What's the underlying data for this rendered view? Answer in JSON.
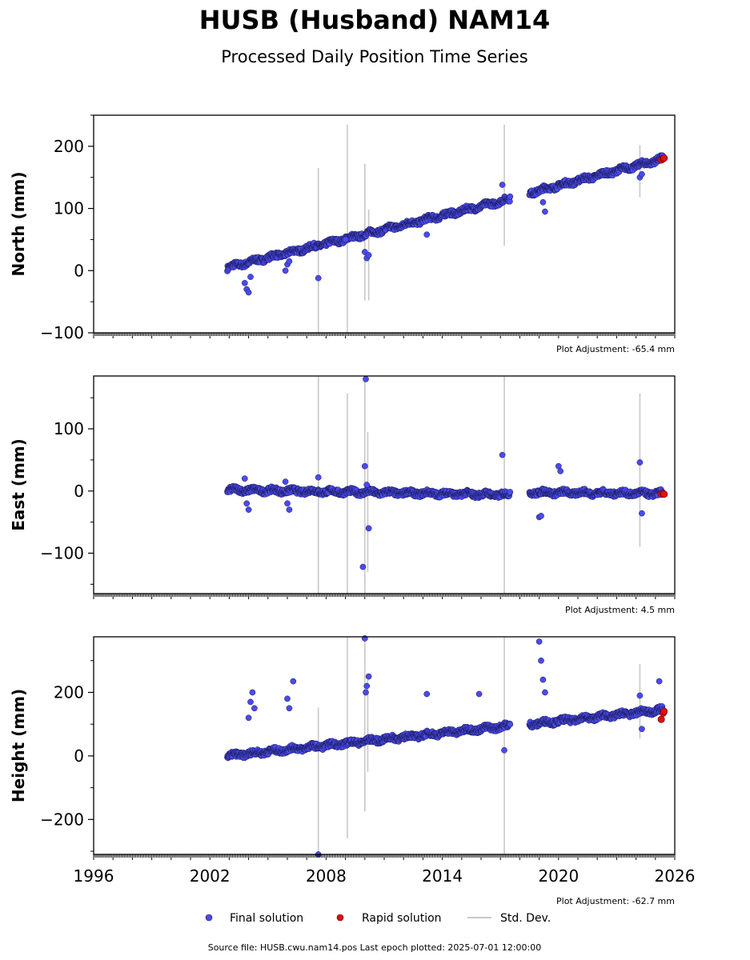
{
  "header": {
    "title": "HUSB (Husband) NAM14",
    "subtitle": "Processed Daily Position Time Series"
  },
  "footer": {
    "source": "Source file: HUSB.cwu.nam14.pos  Last epoch plotted: 2025-07-01 12:00:00"
  },
  "legend": {
    "final": "Final solution",
    "rapid": "Rapid solution",
    "std": "Std. Dev."
  },
  "colors": {
    "final": "#4a4af0",
    "final_edge": "#1a1a50",
    "rapid": "#e01010",
    "std": "#c8c8c8"
  },
  "chart_data": [
    {
      "type": "scatter",
      "ylabel": "North (mm)",
      "adjustment": "Plot Adjustment: -65.4 mm",
      "xlim": [
        1996,
        2026
      ],
      "ylim": [
        -100,
        250
      ],
      "yticks": [
        -100,
        0,
        100,
        200
      ],
      "xticks": [],
      "segments": [
        {
          "x": [
            2002.9,
            2017.5
          ],
          "y": [
            5,
            115
          ]
        },
        {
          "x": [
            2018.5,
            2025.4
          ],
          "y": [
            125,
            180
          ]
        }
      ],
      "outliers_x": [
        2003.8,
        2003.9,
        2004.0,
        2004.1,
        2005.9,
        2006.0,
        2006.1,
        2007.6,
        2009.0,
        2010.0,
        2010.1,
        2010.2,
        2013.2,
        2017.1,
        2019.2,
        2019.3,
        2024.2,
        2024.3
      ],
      "outliers_y": [
        -20,
        -30,
        -35,
        -10,
        0,
        10,
        15,
        -12,
        50,
        30,
        20,
        25,
        58,
        138,
        110,
        95,
        150,
        155
      ],
      "errorbars": [
        {
          "x": 2007.6,
          "lo": -100,
          "hi": 165
        },
        {
          "x": 2009.1,
          "lo": -100,
          "hi": 235
        },
        {
          "x": 2010.0,
          "lo": -48,
          "hi": 172
        },
        {
          "x": 2010.2,
          "lo": -48,
          "hi": 98
        },
        {
          "x": 2017.2,
          "lo": 40,
          "hi": 235
        },
        {
          "x": 2024.2,
          "lo": 118,
          "hi": 202
        }
      ],
      "rapid": {
        "x": [
          2025.3,
          2025.4,
          2025.45
        ],
        "y": [
          178,
          180,
          181
        ]
      }
    },
    {
      "type": "scatter",
      "ylabel": "East (mm)",
      "adjustment": "Plot Adjustment: 4.5 mm",
      "xlim": [
        1996,
        2026
      ],
      "ylim": [
        -165,
        185
      ],
      "yticks": [
        -100,
        0,
        100
      ],
      "xticks": [],
      "segments": [
        {
          "x": [
            2002.9,
            2017.5
          ],
          "y": [
            2,
            -6
          ]
        },
        {
          "x": [
            2018.5,
            2025.4
          ],
          "y": [
            -2,
            -4
          ]
        }
      ],
      "outliers_x": [
        2003.8,
        2003.9,
        2004.0,
        2005.9,
        2006.0,
        2006.1,
        2007.6,
        2009.9,
        2010.0,
        2010.05,
        2010.1,
        2010.2,
        2017.1,
        2019.0,
        2019.1,
        2020.0,
        2020.1,
        2024.2,
        2024.3
      ],
      "outliers_y": [
        20,
        -20,
        -30,
        15,
        -20,
        -30,
        22,
        -122,
        40,
        180,
        10,
        -60,
        58,
        -42,
        -40,
        40,
        32,
        46,
        -36
      ],
      "errorbars": [
        {
          "x": 2007.6,
          "lo": -165,
          "hi": 185
        },
        {
          "x": 2009.1,
          "lo": -165,
          "hi": 157
        },
        {
          "x": 2010.0,
          "lo": -165,
          "hi": 185
        },
        {
          "x": 2010.15,
          "lo": -130,
          "hi": 95
        },
        {
          "x": 2017.2,
          "lo": -165,
          "hi": 185
        },
        {
          "x": 2024.2,
          "lo": -90,
          "hi": 157
        }
      ],
      "rapid": {
        "x": [
          2025.3,
          2025.4,
          2025.45
        ],
        "y": [
          -5,
          -4,
          -5
        ]
      }
    },
    {
      "type": "scatter",
      "ylabel": "Height (mm)",
      "adjustment": "Plot Adjustment: -62.7 mm",
      "xlim": [
        1996,
        2026
      ],
      "ylim": [
        -310,
        375
      ],
      "yticks": [
        -200,
        0,
        200
      ],
      "xticks": [
        1996,
        2002,
        2008,
        2014,
        2020,
        2026
      ],
      "segments": [
        {
          "x": [
            2002.9,
            2017.5
          ],
          "y": [
            0,
            95
          ]
        },
        {
          "x": [
            2018.5,
            2025.4
          ],
          "y": [
            100,
            145
          ]
        }
      ],
      "outliers_x": [
        2004.0,
        2004.1,
        2004.2,
        2004.3,
        2006.0,
        2006.1,
        2006.3,
        2007.6,
        2010.0,
        2010.05,
        2010.1,
        2010.2,
        2013.2,
        2015.9,
        2017.2,
        2019.0,
        2019.1,
        2019.2,
        2019.3,
        2024.2,
        2024.3,
        2025.2
      ],
      "outliers_y": [
        120,
        170,
        200,
        150,
        180,
        150,
        235,
        -310,
        370,
        200,
        220,
        250,
        195,
        195,
        18,
        360,
        300,
        240,
        200,
        190,
        85,
        235
      ],
      "errorbars": [
        {
          "x": 2007.6,
          "lo": -310,
          "hi": 152
        },
        {
          "x": 2009.1,
          "lo": -260,
          "hi": 375
        },
        {
          "x": 2010.0,
          "lo": -175,
          "hi": 375
        },
        {
          "x": 2010.15,
          "lo": -50,
          "hi": 240
        },
        {
          "x": 2017.2,
          "lo": -310,
          "hi": 375
        },
        {
          "x": 2024.2,
          "lo": 55,
          "hi": 290
        }
      ],
      "rapid": {
        "x": [
          2025.3,
          2025.4,
          2025.45
        ],
        "y": [
          115,
          135,
          140
        ]
      }
    }
  ]
}
